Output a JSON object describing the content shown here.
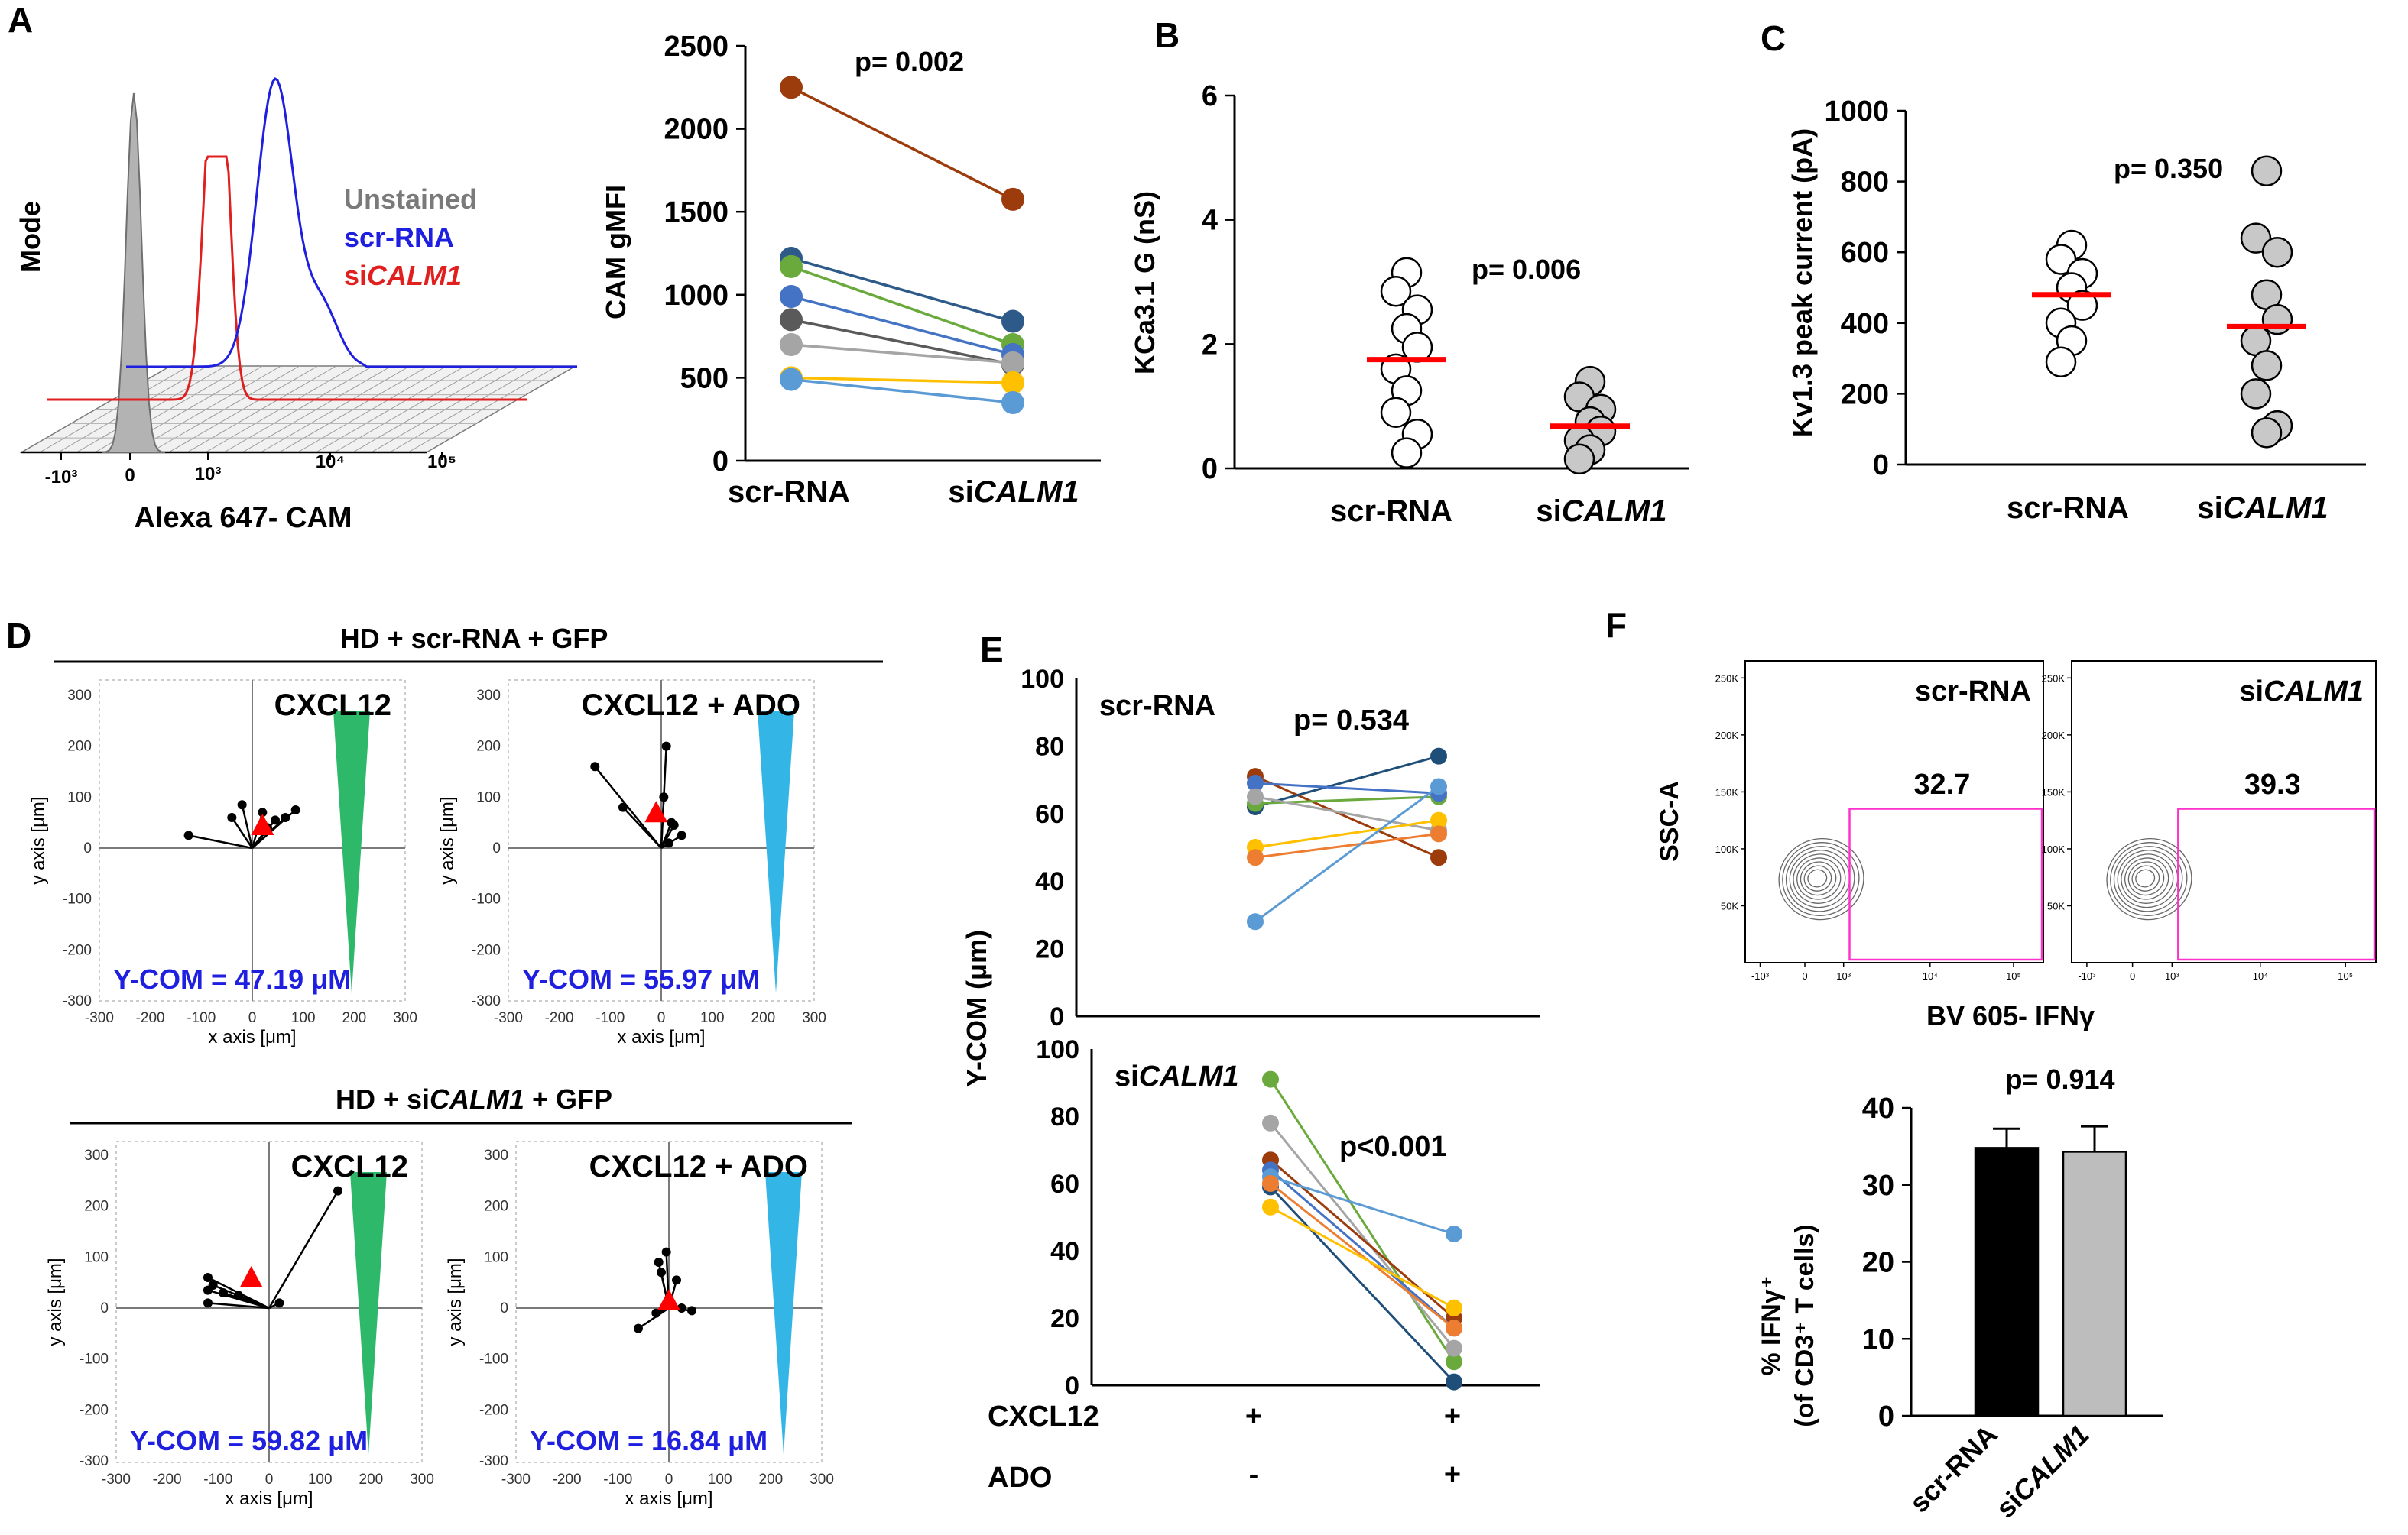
{
  "figure": {
    "description_free": true
  },
  "chart_data": [
    {
      "panel": "A-left",
      "type": "histogram",
      "panel_letter": "A",
      "ylabel": "Mode",
      "xlabel": "Alexa 647- CAM",
      "xticks": [
        "-10³",
        "0",
        "10³",
        "10⁴",
        "10⁵"
      ],
      "legend": [
        {
          "name": "Unstained",
          "color": "#7a7a7a"
        },
        {
          "name": "scr-RNA",
          "color": "#1f1fe0"
        },
        {
          "name": "siCALM1",
          "prefix": "si",
          "italic": "CALM1",
          "color": "#e01f1f"
        }
      ]
    },
    {
      "panel": "A-right",
      "type": "paired-line",
      "ylabel": "CAM gMFI",
      "ylim": [
        0,
        2500
      ],
      "yticks": [
        0,
        500,
        1000,
        1500,
        2000,
        2500
      ],
      "categories": [
        {
          "label": "scr-RNA"
        },
        {
          "prefix": "si",
          "italic": "CALM1"
        }
      ],
      "annotation": "p= 0.002",
      "pairs": [
        {
          "color": "#9c3c0c",
          "values": [
            2250,
            1575
          ]
        },
        {
          "color": "#2e5a8a",
          "values": [
            1220,
            840
          ]
        },
        {
          "color": "#6aaa3c",
          "values": [
            1170,
            700
          ]
        },
        {
          "color": "#4472c4",
          "values": [
            990,
            640
          ]
        },
        {
          "color": "#5a5a5a",
          "values": [
            850,
            580
          ]
        },
        {
          "color": "#a5a5a5",
          "values": [
            700,
            590
          ]
        },
        {
          "color": "#ffc000",
          "values": [
            500,
            470
          ]
        },
        {
          "color": "#5b9bd5",
          "values": [
            490,
            350
          ]
        }
      ]
    },
    {
      "panel": "B",
      "type": "dot-plot",
      "panel_letter": "B",
      "ylabel": "KCa3.1 G (nS)",
      "ylim": [
        0,
        6
      ],
      "yticks": [
        0,
        2,
        4,
        6
      ],
      "categories": [
        {
          "label": "scr-RNA"
        },
        {
          "prefix": "si",
          "italic": "CALM1"
        }
      ],
      "annotation": "p= 0.006",
      "groups": [
        {
          "fill": "#ffffff",
          "mean": 1.75,
          "values": [
            3.15,
            2.85,
            2.55,
            2.25,
            1.95,
            1.6,
            1.25,
            0.9,
            0.55,
            0.25
          ]
        },
        {
          "fill": "#c8c8c8",
          "mean": 0.68,
          "values": [
            1.4,
            1.15,
            0.95,
            0.75,
            0.6,
            0.45,
            0.3,
            0.15
          ]
        }
      ]
    },
    {
      "panel": "C",
      "type": "dot-plot",
      "panel_letter": "C",
      "ylabel": "Kv1.3  peak current (pA)",
      "ylim": [
        0,
        1000
      ],
      "yticks": [
        0,
        200,
        400,
        600,
        800,
        1000
      ],
      "categories": [
        {
          "label": "scr-RNA"
        },
        {
          "prefix": "si",
          "italic": "CALM1"
        }
      ],
      "annotation": "p= 0.350",
      "groups": [
        {
          "fill": "#ffffff",
          "mean": 480,
          "values": [
            620,
            580,
            540,
            500,
            450,
            400,
            350,
            290
          ]
        },
        {
          "fill": "#c8c8c8",
          "mean": 390,
          "values": [
            830,
            640,
            600,
            480,
            410,
            350,
            280,
            200,
            110,
            90
          ]
        }
      ]
    },
    {
      "panel": "D",
      "type": "chemotaxis-plots",
      "panel_letter": "D",
      "xlabel": "x axis [μm]",
      "ylabel": "y axis [μm]",
      "axis_ticks": [
        -300,
        -200,
        -100,
        0,
        100,
        200,
        300
      ],
      "groups": [
        {
          "title_prefix": "HD + scr-RNA + GFP",
          "title_italic": "",
          "title_suffix": "",
          "plots": [
            {
              "label": "CXCL12",
              "ycom": "Y-COM  = 47.19 μM",
              "gradient": "#2db86a",
              "centroid": [
                20,
                45
              ],
              "endpoints": [
                [
                  -125,
                  25
                ],
                [
                  -40,
                  60
                ],
                [
                  -20,
                  85
                ],
                [
                  20,
                  70
                ],
                [
                  45,
                  55
                ],
                [
                  65,
                  60
                ],
                [
                  85,
                  75
                ],
                [
                  30,
                  40
                ]
              ]
            },
            {
              "label": "CXCL12 + ADO",
              "ycom": "Y-COM  = 55.97 μM",
              "gradient": "#33b5e6",
              "centroid": [
                -10,
                70
              ],
              "endpoints": [
                [
                  -130,
                  160
                ],
                [
                  -75,
                  80
                ],
                [
                  10,
                  200
                ],
                [
                  5,
                  100
                ],
                [
                  25,
                  45
                ],
                [
                  40,
                  25
                ],
                [
                  20,
                  50
                ],
                [
                  15,
                  10
                ]
              ]
            }
          ]
        },
        {
          "title_prefix": "HD + si",
          "title_italic": "CALM1",
          "title_suffix": " + GFP",
          "plots": [
            {
              "label": "CXCL12",
              "ycom": "Y-COM  = 59.82 μM",
              "gradient": "#2db86a",
              "centroid": [
                -35,
                60
              ],
              "endpoints": [
                [
                  -120,
                  60
                ],
                [
                  -110,
                  45
                ],
                [
                  -120,
                  35
                ],
                [
                  -90,
                  30
                ],
                [
                  -60,
                  25
                ],
                [
                  -120,
                  10
                ],
                [
                  20,
                  10
                ],
                [
                  135,
                  230
                ]
              ]
            },
            {
              "label": "CXCL12 + ADO",
              "ycom": "Y-COM  = 16.84 μM",
              "gradient": "#33b5e6",
              "centroid": [
                0,
                15
              ],
              "endpoints": [
                [
                  -5,
                  110
                ],
                [
                  -15,
                  70
                ],
                [
                  -20,
                  90
                ],
                [
                  15,
                  55
                ],
                [
                  -60,
                  -40
                ],
                [
                  25,
                  0
                ],
                [
                  45,
                  -5
                ],
                [
                  -25,
                  -10
                ]
              ]
            }
          ]
        }
      ]
    },
    {
      "panel": "E",
      "type": "paired-line",
      "panel_letter": "E",
      "ylabel": "Y-COM  (μm)",
      "row_labels": [
        "CXCL12",
        "ADO"
      ],
      "conditions": [
        [
          "+",
          "-"
        ],
        [
          "+",
          "+"
        ]
      ],
      "subplots": [
        {
          "label_prefix": "scr-RNA",
          "label_italic": "",
          "annotation": "p= 0.534",
          "ylim": [
            0,
            100
          ],
          "yticks": [
            0,
            20,
            40,
            60,
            80,
            100
          ],
          "pairs": [
            {
              "color": "#9c3c0c",
              "values": [
                71,
                47
              ]
            },
            {
              "color": "#1f4e79",
              "values": [
                62,
                77
              ]
            },
            {
              "color": "#6aaa3c",
              "values": [
                63,
                65
              ]
            },
            {
              "color": "#4472c4",
              "values": [
                69,
                66
              ]
            },
            {
              "color": "#a5a5a5",
              "values": [
                65,
                55
              ]
            },
            {
              "color": "#ffc000",
              "values": [
                50,
                58
              ]
            },
            {
              "color": "#ed7d31",
              "values": [
                47,
                54
              ]
            },
            {
              "color": "#5b9bd5",
              "values": [
                28,
                68
              ]
            }
          ]
        },
        {
          "label_prefix": "si",
          "label_italic": "CALM1",
          "annotation": "p<0.001",
          "ylim": [
            0,
            100
          ],
          "yticks": [
            0,
            20,
            40,
            60,
            80,
            100
          ],
          "pairs": [
            {
              "color": "#6aaa3c",
              "values": [
                91,
                7
              ]
            },
            {
              "color": "#a5a5a5",
              "values": [
                78,
                11
              ]
            },
            {
              "color": "#9c3c0c",
              "values": [
                67,
                20
              ]
            },
            {
              "color": "#4472c4",
              "values": [
                64,
                17
              ]
            },
            {
              "color": "#1f4e79",
              "values": [
                59,
                1
              ]
            },
            {
              "color": "#5b9bd5",
              "values": [
                62,
                45
              ]
            },
            {
              "color": "#ed7d31",
              "values": [
                60,
                17
              ]
            },
            {
              "color": "#ffc000",
              "values": [
                53,
                23
              ]
            }
          ]
        }
      ]
    },
    {
      "panel": "F-contour",
      "type": "flow-contour",
      "panel_letter": "F",
      "ylabel": "SSC-A",
      "xlabel": "BV 605- IFNγ",
      "yticks": [
        "50K",
        "100K",
        "150K",
        "200K",
        "250K"
      ],
      "xticks": [
        "-10³",
        "0",
        "10³",
        "10⁴",
        "10⁵"
      ],
      "plots": [
        {
          "label_prefix": "scr-RNA",
          "label_italic": "",
          "gate_value": "32.7"
        },
        {
          "label_prefix": "si",
          "label_italic": "CALM1",
          "gate_value": "39.3"
        }
      ]
    },
    {
      "panel": "F-bar",
      "type": "bar",
      "ylabel_lines": [
        "% IFNγ⁺",
        "(of CD3⁺ T cells)"
      ],
      "ylim": [
        0,
        40
      ],
      "yticks": [
        0,
        10,
        20,
        30,
        40
      ],
      "annotation": "p= 0.914",
      "categories": [
        {
          "label": "scr-RNA"
        },
        {
          "prefix": "si",
          "italic": "CALM1"
        }
      ],
      "values": [
        34.8,
        34.3
      ],
      "errors": [
        2.5,
        3.3
      ],
      "colors": [
        "#000000",
        "#bdbdbd"
      ]
    }
  ]
}
